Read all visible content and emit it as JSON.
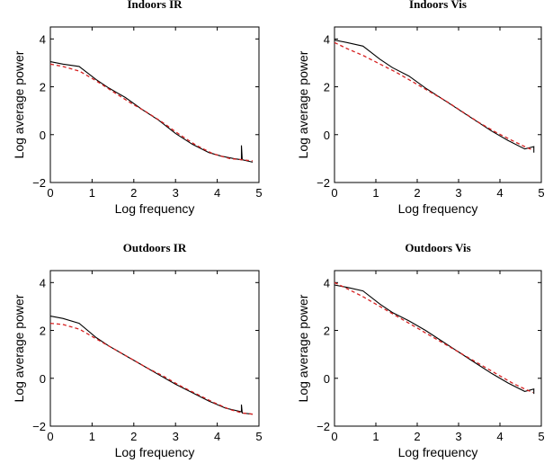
{
  "chart_data": [
    {
      "type": "line",
      "title": "Indoors IR",
      "xlabel": "Log frequency",
      "ylabel": "Log average power",
      "xlim": [
        0,
        5
      ],
      "ylim": [
        -2,
        4.5
      ],
      "xticks": [
        0,
        1,
        2,
        3,
        4,
        5
      ],
      "yticks": [
        -2,
        0,
        2,
        4
      ],
      "grid": false,
      "series": [
        {
          "style": "solid",
          "color": "#000000",
          "x": [
            0,
            0.3,
            0.69,
            1.1,
            1.4,
            1.8,
            2.2,
            2.6,
            3.0,
            3.4,
            3.8,
            4.1,
            4.4,
            4.58,
            4.58,
            4.6,
            4.85
          ],
          "y": [
            3.05,
            2.95,
            2.85,
            2.3,
            1.95,
            1.55,
            1.05,
            0.6,
            0.05,
            -0.4,
            -0.75,
            -0.9,
            -1.0,
            -1.05,
            -0.45,
            -1.05,
            -1.15
          ]
        },
        {
          "style": "dashed",
          "color": "#d62020",
          "x": [
            0,
            0.3,
            0.7,
            1.1,
            1.5,
            1.9,
            2.3,
            2.7,
            3.1,
            3.5,
            3.9,
            4.3,
            4.6,
            4.85
          ],
          "y": [
            2.95,
            2.85,
            2.65,
            2.25,
            1.8,
            1.35,
            0.95,
            0.5,
            0.0,
            -0.45,
            -0.8,
            -1.0,
            -1.05,
            -1.1
          ]
        }
      ]
    },
    {
      "type": "line",
      "title": "Indoors Vis",
      "xlabel": "Log frequency",
      "ylabel": "Log average power",
      "xlim": [
        0,
        5
      ],
      "ylim": [
        -2,
        4.5
      ],
      "xticks": [
        0,
        1,
        2,
        3,
        4,
        5
      ],
      "yticks": [
        -2,
        0,
        2,
        4
      ],
      "grid": false,
      "series": [
        {
          "style": "solid",
          "color": "#000000",
          "x": [
            0,
            0.3,
            0.69,
            1.1,
            1.4,
            1.8,
            2.2,
            2.6,
            3.0,
            3.4,
            3.8,
            4.2,
            4.6,
            4.82,
            4.82
          ],
          "y": [
            3.95,
            3.85,
            3.7,
            3.15,
            2.8,
            2.45,
            1.95,
            1.5,
            1.05,
            0.6,
            0.15,
            -0.25,
            -0.6,
            -0.5,
            -0.75
          ]
        },
        {
          "style": "dashed",
          "color": "#d62020",
          "x": [
            0,
            0.3,
            0.7,
            1.1,
            1.5,
            1.9,
            2.3,
            2.7,
            3.1,
            3.5,
            3.9,
            4.3,
            4.6,
            4.8
          ],
          "y": [
            3.85,
            3.6,
            3.3,
            2.95,
            2.6,
            2.2,
            1.8,
            1.4,
            0.95,
            0.5,
            0.1,
            -0.25,
            -0.5,
            -0.65
          ]
        }
      ]
    },
    {
      "type": "line",
      "title": "Outdoors IR",
      "xlabel": "Log frequency",
      "ylabel": "Log average power",
      "xlim": [
        0,
        5
      ],
      "ylim": [
        -2,
        4.5
      ],
      "xticks": [
        0,
        1,
        2,
        3,
        4,
        5
      ],
      "yticks": [
        -2,
        0,
        2,
        4
      ],
      "grid": false,
      "series": [
        {
          "style": "solid",
          "color": "#000000",
          "x": [
            0,
            0.3,
            0.69,
            1.1,
            1.4,
            1.8,
            2.2,
            2.6,
            3.0,
            3.4,
            3.8,
            4.2,
            4.58,
            4.58,
            4.6,
            4.85
          ],
          "y": [
            2.6,
            2.5,
            2.3,
            1.7,
            1.35,
            0.95,
            0.55,
            0.15,
            -0.25,
            -0.6,
            -0.95,
            -1.25,
            -1.4,
            -1.1,
            -1.45,
            -1.5
          ]
        },
        {
          "style": "dashed",
          "color": "#d62020",
          "x": [
            0,
            0.3,
            0.7,
            1.1,
            1.5,
            1.9,
            2.3,
            2.7,
            3.1,
            3.5,
            3.9,
            4.3,
            4.6,
            4.85
          ],
          "y": [
            2.3,
            2.25,
            2.05,
            1.65,
            1.25,
            0.85,
            0.45,
            0.1,
            -0.3,
            -0.65,
            -1.0,
            -1.3,
            -1.45,
            -1.5
          ]
        }
      ]
    },
    {
      "type": "line",
      "title": "Outdoors Vis",
      "xlabel": "Log frequency",
      "ylabel": "Log average power",
      "xlim": [
        0,
        5
      ],
      "ylim": [
        -2,
        4.5
      ],
      "xticks": [
        0,
        1,
        2,
        3,
        4,
        5
      ],
      "yticks": [
        -2,
        0,
        2,
        4
      ],
      "grid": false,
      "series": [
        {
          "style": "solid",
          "color": "#000000",
          "x": [
            0,
            0.3,
            0.69,
            1.1,
            1.4,
            1.8,
            2.2,
            2.6,
            3.0,
            3.4,
            3.8,
            4.2,
            4.6,
            4.82,
            4.82
          ],
          "y": [
            3.9,
            3.8,
            3.65,
            3.1,
            2.75,
            2.4,
            2.0,
            1.55,
            1.1,
            0.65,
            0.2,
            -0.2,
            -0.55,
            -0.45,
            -0.65
          ]
        },
        {
          "style": "dashed",
          "color": "#d62020",
          "x": [
            0,
            0.3,
            0.7,
            1.1,
            1.5,
            1.9,
            2.3,
            2.7,
            3.1,
            3.5,
            3.9,
            4.3,
            4.6,
            4.8
          ],
          "y": [
            4.0,
            3.75,
            3.4,
            3.0,
            2.6,
            2.2,
            1.8,
            1.4,
            1.0,
            0.6,
            0.2,
            -0.2,
            -0.45,
            -0.6
          ]
        }
      ]
    }
  ]
}
